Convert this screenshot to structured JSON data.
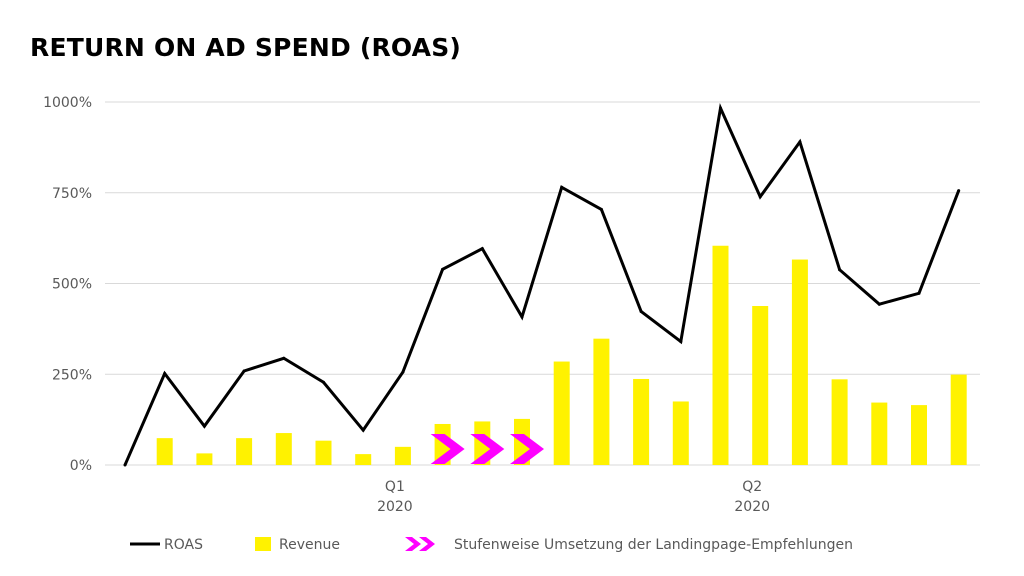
{
  "colors": {
    "roas_line": "#000000",
    "revenue_bar": "#fff200",
    "chevron": "#ff00ff",
    "grid": "#d9d9d9",
    "tick_text": "#595959"
  },
  "chart_data": {
    "type": "bar+line",
    "title": "RETURN ON AD SPEND (ROAS)",
    "xlabel": "",
    "ylabel": "",
    "ylim": [
      0,
      1000
    ],
    "yticks": [
      0,
      250,
      500,
      750,
      1000
    ],
    "ytick_labels": [
      "0%",
      "250%",
      "500%",
      "750%",
      "1000%"
    ],
    "grid": true,
    "legend_position": "bottom",
    "x_group_labels": [
      {
        "label": "Q1",
        "year": "2020",
        "index": 7
      },
      {
        "label": "Q2",
        "year": "2020",
        "index": 16
      }
    ],
    "series": [
      {
        "name": "ROAS",
        "kind": "line",
        "values": [
          0,
          252,
          107,
          259,
          294,
          228,
          96,
          256,
          539,
          596,
          408,
          765,
          704,
          423,
          340,
          983,
          739,
          890,
          538,
          443,
          473,
          756
        ]
      },
      {
        "name": "Revenue",
        "kind": "bar",
        "values": [
          null,
          74,
          32,
          74,
          88,
          67,
          30,
          50,
          113,
          120,
          127,
          285,
          348,
          237,
          175,
          604,
          438,
          566,
          236,
          172,
          165,
          249
        ]
      }
    ],
    "annotation": {
      "name": "Stufenweise Umsetzung der Landingpage-Empfehlungen",
      "kind": "chevrons",
      "start_index": 8,
      "end_index": 10
    },
    "legend": [
      {
        "label": "ROAS",
        "kind": "line"
      },
      {
        "label": "Revenue",
        "kind": "bar"
      },
      {
        "label": "Stufenweise Umsetzung der Landingpage-Empfehlungen",
        "kind": "chevrons"
      }
    ]
  }
}
